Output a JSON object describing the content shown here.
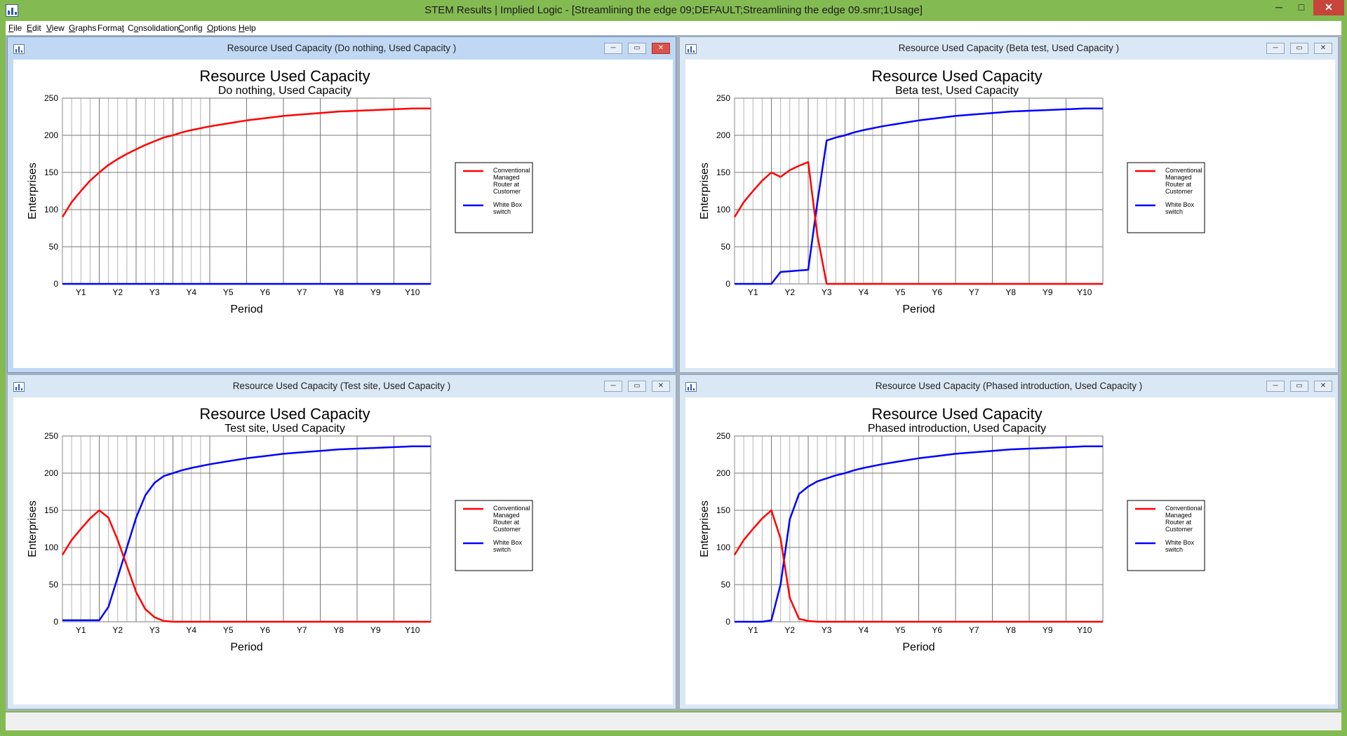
{
  "app": {
    "title": "STEM Results | Implied Logic - [Streamlining the edge 09;DEFAULT;Streamlining the edge 09.smr;1Usage]",
    "min_glyph": "─",
    "max_glyph": "□",
    "close_glyph": "✕"
  },
  "menu": [
    {
      "label": "File",
      "accel": "F",
      "rest": "ile"
    },
    {
      "label": "Edit",
      "accel": "E",
      "rest": "dit"
    },
    {
      "label": "View",
      "accel": "V",
      "rest": "iew"
    },
    {
      "label": "Graphs",
      "accel": "G",
      "rest": "raphs"
    },
    {
      "label": "Format",
      "pre": "Forma",
      "accel": "t",
      "rest": ""
    },
    {
      "label": "Consolidation",
      "pre": "C",
      "accel": "o",
      "rest": "nsolidation"
    },
    {
      "label": "Config",
      "accel": "C",
      "rest": "onfig"
    },
    {
      "label": "Options",
      "accel": "O",
      "rest": "ptions"
    },
    {
      "label": "Help",
      "accel": "H",
      "rest": "elp"
    }
  ],
  "child_buttons": {
    "min": "─",
    "max": "▭",
    "close": "✕"
  },
  "windows": [
    {
      "caption": "Resource Used Capacity (Do nothing, Used Capacity )",
      "active": true
    },
    {
      "caption": "Resource Used Capacity (Beta test, Used Capacity )",
      "active": false
    },
    {
      "caption": "Resource Used Capacity (Test site, Used Capacity )",
      "active": false
    },
    {
      "caption": "Resource Used Capacity (Phased introduction, Used Capacity )",
      "active": false
    }
  ],
  "colors": {
    "red_series": "#ff0000",
    "blue_series": "#0000ff",
    "grid": "#909090"
  },
  "chart_data": [
    {
      "type": "line",
      "title": "Resource Used Capacity",
      "subtitle": "Do nothing, Used Capacity",
      "xlabel": "Period",
      "ylabel": "Enterprises",
      "ylim": [
        0,
        250
      ],
      "yticks": [
        0,
        50,
        100,
        150,
        200,
        250
      ],
      "xlim": [
        0.5,
        10.5
      ],
      "xticks": [
        "Y1",
        "Y2",
        "Y3",
        "Y4",
        "Y5",
        "Y6",
        "Y7",
        "Y8",
        "Y9",
        "Y10"
      ],
      "grid": true,
      "legend": "right",
      "series": [
        {
          "name": "Conventional Managed Router at Customer",
          "color": "#ff0000",
          "x": [
            0.5,
            0.75,
            1,
            1.25,
            1.5,
            1.75,
            2,
            2.25,
            2.5,
            2.75,
            3,
            3.25,
            3.5,
            3.75,
            4,
            4.5,
            5,
            5.5,
            6,
            6.5,
            7,
            7.5,
            8,
            8.5,
            9,
            9.5,
            10,
            10.5
          ],
          "y": [
            90,
            110,
            125,
            139,
            150,
            160,
            168,
            175,
            181,
            187,
            192,
            197,
            200,
            204,
            207,
            212,
            216,
            220,
            223,
            226,
            228,
            230,
            232,
            233,
            234,
            235,
            236,
            236
          ]
        },
        {
          "name": "White Box switch",
          "color": "#0000ff",
          "x": [
            0.5,
            10.5
          ],
          "y": [
            0,
            0
          ]
        }
      ]
    },
    {
      "type": "line",
      "title": "Resource Used Capacity",
      "subtitle": "Beta test, Used Capacity",
      "xlabel": "Period",
      "ylabel": "Enterprises",
      "ylim": [
        0,
        250
      ],
      "yticks": [
        0,
        50,
        100,
        150,
        200,
        250
      ],
      "xlim": [
        0.5,
        10.5
      ],
      "xticks": [
        "Y1",
        "Y2",
        "Y3",
        "Y4",
        "Y5",
        "Y6",
        "Y7",
        "Y8",
        "Y9",
        "Y10"
      ],
      "grid": true,
      "legend": "right",
      "series": [
        {
          "name": "Conventional Managed Router at Customer",
          "color": "#ff0000",
          "x": [
            0.5,
            0.75,
            1,
            1.25,
            1.5,
            1.75,
            2,
            2.25,
            2.5,
            2.75,
            3,
            3.25,
            10.5
          ],
          "y": [
            90,
            110,
            125,
            139,
            150,
            144,
            153,
            159,
            164,
            65,
            0,
            0,
            0
          ]
        },
        {
          "name": "White Box switch",
          "color": "#0000ff",
          "x": [
            0.5,
            1,
            1.5,
            1.75,
            2,
            2.25,
            2.5,
            2.75,
            3,
            3.25,
            3.5,
            3.75,
            4,
            4.5,
            5,
            5.5,
            6,
            6.5,
            7,
            7.5,
            8,
            8.5,
            9,
            9.5,
            10,
            10.5
          ],
          "y": [
            0,
            0,
            0,
            16,
            17,
            18,
            19,
            110,
            193,
            197,
            200,
            204,
            207,
            212,
            216,
            220,
            223,
            226,
            228,
            230,
            232,
            233,
            234,
            235,
            236,
            236
          ]
        }
      ]
    },
    {
      "type": "line",
      "title": "Resource Used Capacity",
      "subtitle": "Test site, Used Capacity",
      "xlabel": "Period",
      "ylabel": "Enterprises",
      "ylim": [
        0,
        250
      ],
      "yticks": [
        0,
        50,
        100,
        150,
        200,
        250
      ],
      "xlim": [
        0.5,
        10.5
      ],
      "xticks": [
        "Y1",
        "Y2",
        "Y3",
        "Y4",
        "Y5",
        "Y6",
        "Y7",
        "Y8",
        "Y9",
        "Y10"
      ],
      "grid": true,
      "legend": "right",
      "series": [
        {
          "name": "Conventional Managed Router at Customer",
          "color": "#ff0000",
          "x": [
            0.5,
            0.75,
            1,
            1.25,
            1.5,
            1.75,
            2,
            2.25,
            2.5,
            2.75,
            3,
            3.25,
            3.5,
            10.5
          ],
          "y": [
            90,
            110,
            125,
            139,
            150,
            140,
            110,
            75,
            40,
            17,
            6,
            1,
            0,
            0
          ]
        },
        {
          "name": "White Box switch",
          "color": "#0000ff",
          "x": [
            0.5,
            1,
            1.5,
            1.75,
            2,
            2.25,
            2.5,
            2.75,
            3,
            3.25,
            3.5,
            3.75,
            4,
            4.5,
            5,
            5.5,
            6,
            6.5,
            7,
            7.5,
            8,
            8.5,
            9,
            9.5,
            10,
            10.5
          ],
          "y": [
            2,
            2,
            2,
            20,
            60,
            100,
            140,
            170,
            187,
            196,
            200,
            204,
            207,
            212,
            216,
            220,
            223,
            226,
            228,
            230,
            232,
            233,
            234,
            235,
            236,
            236
          ]
        }
      ]
    },
    {
      "type": "line",
      "title": "Resource Used Capacity",
      "subtitle": "Phased introduction, Used Capacity",
      "xlabel": "Period",
      "ylabel": "Enterprises",
      "ylim": [
        0,
        250
      ],
      "yticks": [
        0,
        50,
        100,
        150,
        200,
        250
      ],
      "xlim": [
        0.5,
        10.5
      ],
      "xticks": [
        "Y1",
        "Y2",
        "Y3",
        "Y4",
        "Y5",
        "Y6",
        "Y7",
        "Y8",
        "Y9",
        "Y10"
      ],
      "grid": true,
      "legend": "right",
      "series": [
        {
          "name": "Conventional Managed Router at Customer",
          "color": "#ff0000",
          "x": [
            0.5,
            0.75,
            1,
            1.25,
            1.5,
            1.75,
            2,
            2.25,
            2.5,
            2.75,
            3,
            10.5
          ],
          "y": [
            90,
            110,
            125,
            139,
            150,
            112,
            32,
            4,
            1,
            0,
            0,
            0
          ]
        },
        {
          "name": "White Box switch",
          "color": "#0000ff",
          "x": [
            0.5,
            1,
            1.25,
            1.5,
            1.75,
            2,
            2.25,
            2.5,
            2.75,
            3,
            3.25,
            3.5,
            3.75,
            4,
            4.5,
            5,
            5.5,
            6,
            6.5,
            7,
            7.5,
            8,
            8.5,
            9,
            9.5,
            10,
            10.5
          ],
          "y": [
            0,
            0,
            0,
            2,
            50,
            138,
            172,
            182,
            189,
            193,
            197,
            200,
            204,
            207,
            212,
            216,
            220,
            223,
            226,
            228,
            230,
            232,
            233,
            234,
            235,
            236,
            236
          ]
        }
      ]
    }
  ]
}
